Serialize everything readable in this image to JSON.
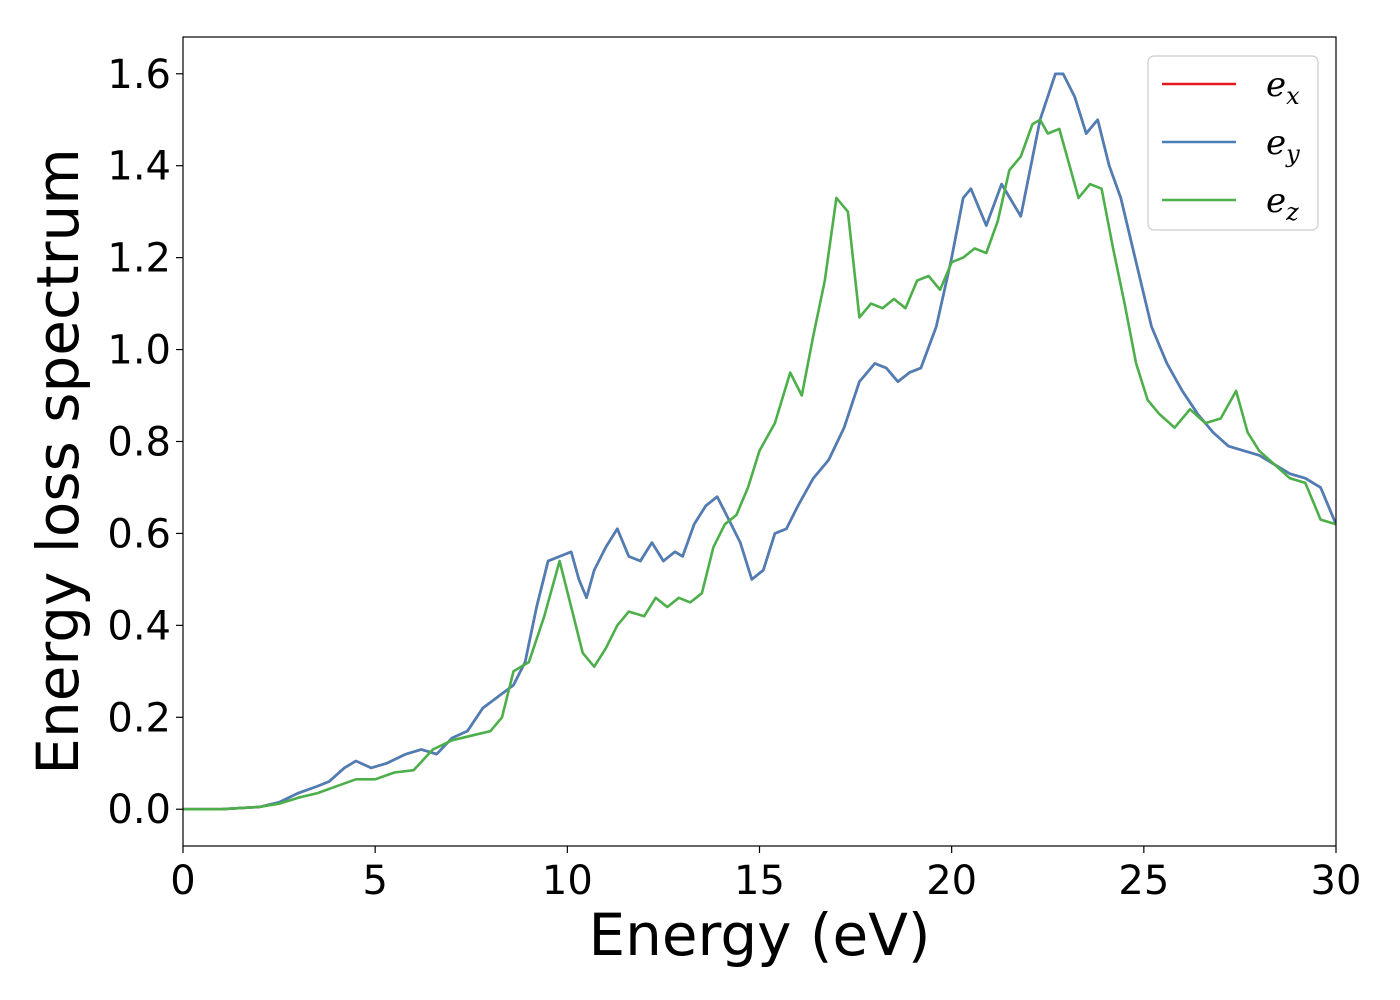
{
  "chart_data": {
    "type": "line",
    "title": "",
    "xlabel": "Energy (eV)",
    "ylabel": "Energy loss spectrum",
    "xlim": [
      0,
      30
    ],
    "ylim": [
      -0.08,
      1.68
    ],
    "xticks": [
      0,
      5,
      10,
      15,
      20,
      25,
      30
    ],
    "xtick_labels": [
      "0",
      "5",
      "10",
      "15",
      "20",
      "25",
      "30"
    ],
    "yticks": [
      0.0,
      0.2,
      0.4,
      0.6,
      0.8,
      1.0,
      1.2,
      1.4,
      1.6
    ],
    "ytick_labels": [
      "0.0",
      "0.2",
      "0.4",
      "0.6",
      "0.8",
      "1.0",
      "1.2",
      "1.4",
      "1.6"
    ],
    "grid": false,
    "legend_position": "top-right",
    "series": [
      {
        "name": "e",
        "subscript": "x",
        "color": "#e41a1c",
        "x": [
          0,
          1,
          2,
          2.5,
          3,
          3.5,
          3.8,
          4.2,
          4.5,
          4.9,
          5.3,
          5.8,
          6.2,
          6.6,
          7.0,
          7.4,
          7.8,
          8.2,
          8.6,
          8.9,
          9.2,
          9.5,
          9.8,
          10.1,
          10.3,
          10.5,
          10.7,
          11.0,
          11.3,
          11.6,
          11.9,
          12.2,
          12.5,
          12.8,
          13.0,
          13.3,
          13.6,
          13.9,
          14.2,
          14.5,
          14.8,
          15.1,
          15.4,
          15.7,
          16.0,
          16.4,
          16.8,
          17.2,
          17.6,
          18.0,
          18.3,
          18.6,
          18.9,
          19.2,
          19.6,
          20.0,
          20.3,
          20.5,
          20.9,
          21.3,
          21.8,
          22.3,
          22.7,
          22.9,
          23.2,
          23.5,
          23.8,
          24.1,
          24.4,
          24.8,
          25.2,
          25.6,
          26.0,
          26.4,
          26.8,
          27.2,
          27.6,
          28.0,
          28.4,
          28.8,
          29.2,
          29.6,
          30.0
        ],
        "y": [
          0.0,
          0.0,
          0.005,
          0.015,
          0.035,
          0.05,
          0.06,
          0.09,
          0.105,
          0.09,
          0.1,
          0.12,
          0.13,
          0.12,
          0.155,
          0.17,
          0.22,
          0.245,
          0.27,
          0.32,
          0.44,
          0.54,
          0.55,
          0.56,
          0.5,
          0.46,
          0.52,
          0.57,
          0.61,
          0.55,
          0.54,
          0.58,
          0.54,
          0.56,
          0.55,
          0.62,
          0.66,
          0.68,
          0.63,
          0.58,
          0.5,
          0.52,
          0.6,
          0.61,
          0.66,
          0.72,
          0.76,
          0.83,
          0.93,
          0.97,
          0.96,
          0.93,
          0.95,
          0.96,
          1.05,
          1.2,
          1.33,
          1.35,
          1.27,
          1.36,
          1.29,
          1.5,
          1.6,
          1.6,
          1.55,
          1.47,
          1.5,
          1.4,
          1.33,
          1.19,
          1.05,
          0.97,
          0.91,
          0.86,
          0.82,
          0.79,
          0.78,
          0.77,
          0.75,
          0.73,
          0.72,
          0.7,
          0.62
        ]
      },
      {
        "name": "e",
        "subscript": "y",
        "color": "#4a7fb8",
        "x": [
          0,
          1,
          2,
          2.5,
          3,
          3.5,
          3.8,
          4.2,
          4.5,
          4.9,
          5.3,
          5.8,
          6.2,
          6.6,
          7.0,
          7.4,
          7.8,
          8.2,
          8.6,
          8.9,
          9.2,
          9.5,
          9.8,
          10.1,
          10.3,
          10.5,
          10.7,
          11.0,
          11.3,
          11.6,
          11.9,
          12.2,
          12.5,
          12.8,
          13.0,
          13.3,
          13.6,
          13.9,
          14.2,
          14.5,
          14.8,
          15.1,
          15.4,
          15.7,
          16.0,
          16.4,
          16.8,
          17.2,
          17.6,
          18.0,
          18.3,
          18.6,
          18.9,
          19.2,
          19.6,
          20.0,
          20.3,
          20.5,
          20.9,
          21.3,
          21.8,
          22.3,
          22.7,
          22.9,
          23.2,
          23.5,
          23.8,
          24.1,
          24.4,
          24.8,
          25.2,
          25.6,
          26.0,
          26.4,
          26.8,
          27.2,
          27.6,
          28.0,
          28.4,
          28.8,
          29.2,
          29.6,
          30.0
        ],
        "y": [
          0.0,
          0.0,
          0.005,
          0.015,
          0.035,
          0.05,
          0.06,
          0.09,
          0.105,
          0.09,
          0.1,
          0.12,
          0.13,
          0.12,
          0.155,
          0.17,
          0.22,
          0.245,
          0.27,
          0.32,
          0.44,
          0.54,
          0.55,
          0.56,
          0.5,
          0.46,
          0.52,
          0.57,
          0.61,
          0.55,
          0.54,
          0.58,
          0.54,
          0.56,
          0.55,
          0.62,
          0.66,
          0.68,
          0.63,
          0.58,
          0.5,
          0.52,
          0.6,
          0.61,
          0.66,
          0.72,
          0.76,
          0.83,
          0.93,
          0.97,
          0.96,
          0.93,
          0.95,
          0.96,
          1.05,
          1.2,
          1.33,
          1.35,
          1.27,
          1.36,
          1.29,
          1.5,
          1.6,
          1.6,
          1.55,
          1.47,
          1.5,
          1.4,
          1.33,
          1.19,
          1.05,
          0.97,
          0.91,
          0.86,
          0.82,
          0.79,
          0.78,
          0.77,
          0.75,
          0.73,
          0.72,
          0.7,
          0.62
        ]
      },
      {
        "name": "e",
        "subscript": "z",
        "color": "#4daf4a",
        "x": [
          0,
          1,
          2,
          2.5,
          3,
          3.5,
          4.0,
          4.5,
          5.0,
          5.5,
          6.0,
          6.5,
          7.0,
          7.5,
          8.0,
          8.3,
          8.6,
          9.0,
          9.4,
          9.8,
          10.1,
          10.4,
          10.7,
          11.0,
          11.3,
          11.6,
          12.0,
          12.3,
          12.6,
          12.9,
          13.2,
          13.5,
          13.8,
          14.1,
          14.4,
          14.7,
          15.0,
          15.4,
          15.8,
          16.1,
          16.4,
          16.7,
          17.0,
          17.3,
          17.6,
          17.9,
          18.2,
          18.5,
          18.8,
          19.1,
          19.4,
          19.7,
          20.0,
          20.3,
          20.6,
          20.9,
          21.2,
          21.5,
          21.8,
          22.1,
          22.3,
          22.5,
          22.8,
          23.0,
          23.3,
          23.6,
          23.9,
          24.2,
          24.5,
          24.8,
          25.1,
          25.4,
          25.8,
          26.2,
          26.6,
          27.0,
          27.4,
          27.7,
          28.0,
          28.4,
          28.8,
          29.2,
          29.6,
          30.0
        ],
        "y": [
          0.0,
          0.0,
          0.005,
          0.012,
          0.025,
          0.035,
          0.05,
          0.065,
          0.065,
          0.08,
          0.085,
          0.13,
          0.15,
          0.16,
          0.17,
          0.2,
          0.3,
          0.32,
          0.42,
          0.54,
          0.44,
          0.34,
          0.31,
          0.35,
          0.4,
          0.43,
          0.42,
          0.46,
          0.44,
          0.46,
          0.45,
          0.47,
          0.57,
          0.62,
          0.64,
          0.7,
          0.78,
          0.84,
          0.95,
          0.9,
          1.03,
          1.15,
          1.33,
          1.3,
          1.07,
          1.1,
          1.09,
          1.11,
          1.09,
          1.15,
          1.16,
          1.13,
          1.19,
          1.2,
          1.22,
          1.21,
          1.28,
          1.39,
          1.42,
          1.49,
          1.5,
          1.47,
          1.48,
          1.42,
          1.33,
          1.36,
          1.35,
          1.22,
          1.1,
          0.97,
          0.89,
          0.86,
          0.83,
          0.87,
          0.84,
          0.85,
          0.91,
          0.82,
          0.78,
          0.75,
          0.72,
          0.71,
          0.63,
          0.62
        ]
      }
    ]
  }
}
